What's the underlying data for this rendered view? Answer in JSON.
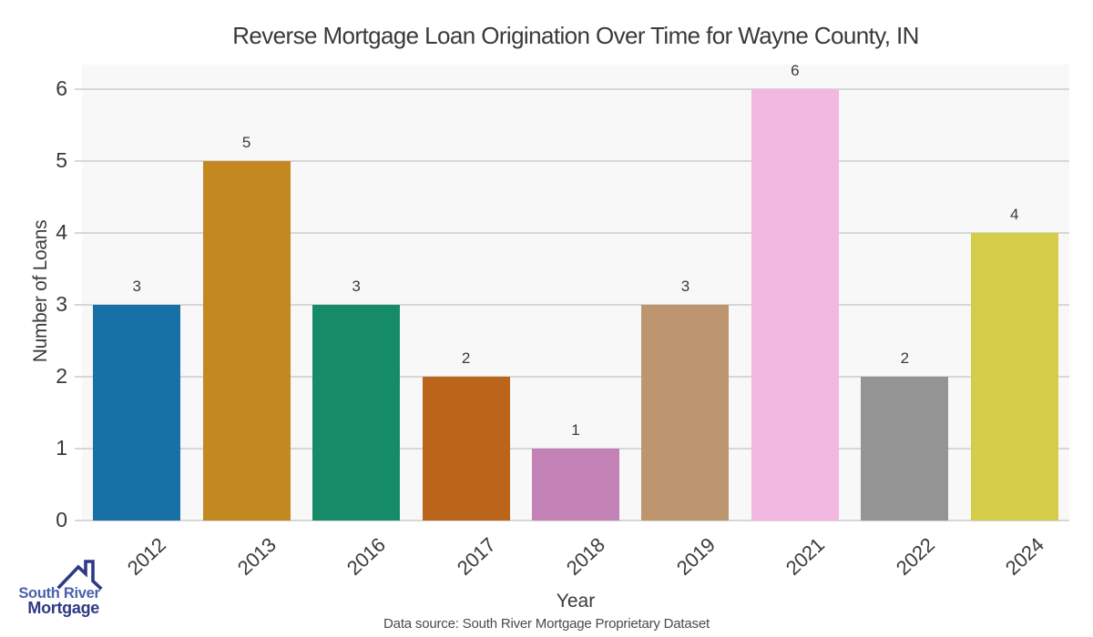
{
  "chart_data": {
    "type": "bar",
    "title": "Reverse Mortgage Loan Origination Over Time for Wayne County, IN",
    "categories": [
      "2012",
      "2013",
      "2016",
      "2017",
      "2018",
      "2019",
      "2021",
      "2022",
      "2024"
    ],
    "values": [
      3,
      5,
      3,
      2,
      1,
      3,
      6,
      2,
      4
    ],
    "xlabel": "Year",
    "ylabel": "Number of Loans",
    "yticks": [
      0,
      1,
      2,
      3,
      4,
      5,
      6
    ],
    "ylim": [
      0,
      6.34
    ],
    "grid": "horizontal-only",
    "legend": "none",
    "bar_label_position": "above-bar",
    "bar_colors": [
      "#1770a6",
      "#c38920",
      "#168b68",
      "#bb651b",
      "#c282b5",
      "#bd956e",
      "#f1b8e0",
      "#949494",
      "#d5cd4a"
    ]
  },
  "colors": {
    "plot_bg": "#f8f8f8",
    "grid": "#d7d7d7",
    "text": "#3a3a3a",
    "muted": "#4a4a4a"
  },
  "footer": {
    "data_source": "Data source: South River Mortgage Proprietary Dataset"
  },
  "logo": {
    "line1": "South River",
    "line2": "Mortgage",
    "line1_color": "#4a61a9",
    "line2_color": "#2e3a85",
    "roof_color": "#2e3a85"
  }
}
